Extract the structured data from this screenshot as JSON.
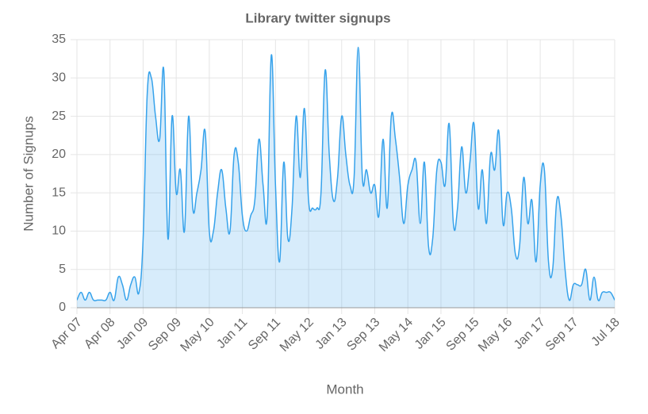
{
  "chart_data": {
    "type": "area",
    "title": "Library twitter signups",
    "x_label": "Month",
    "y_label": "Number of Signups",
    "categories": [
      "Apr 07",
      null,
      null,
      null,
      null,
      null,
      null,
      null,
      "Apr 08",
      null,
      null,
      null,
      null,
      null,
      null,
      null,
      "Jan 09",
      null,
      null,
      null,
      null,
      null,
      null,
      null,
      "Sep 09",
      null,
      null,
      null,
      null,
      null,
      null,
      null,
      "May 10",
      null,
      null,
      null,
      null,
      null,
      null,
      null,
      "Jan 11",
      null,
      null,
      null,
      null,
      null,
      null,
      null,
      "Sep 11",
      null,
      null,
      null,
      null,
      null,
      null,
      null,
      "May 12",
      null,
      null,
      null,
      null,
      null,
      null,
      null,
      "Jan 13",
      null,
      null,
      null,
      null,
      null,
      null,
      null,
      "Sep 13",
      null,
      null,
      null,
      null,
      null,
      null,
      null,
      "May 14",
      null,
      null,
      null,
      null,
      null,
      null,
      null,
      "Jan 15",
      null,
      null,
      null,
      null,
      null,
      null,
      null,
      "Sep 15",
      null,
      null,
      null,
      null,
      null,
      null,
      null,
      "May 16",
      null,
      null,
      null,
      null,
      null,
      null,
      null,
      "Jan 17",
      null,
      null,
      null,
      null,
      null,
      null,
      null,
      "Sep 17",
      null,
      null,
      null,
      null,
      null,
      null,
      null,
      null,
      null,
      "Jul 18"
    ],
    "values": [
      1,
      2,
      1,
      2,
      1,
      1,
      1,
      1,
      2,
      1,
      4,
      3,
      1,
      3,
      4,
      2,
      9,
      28,
      30,
      25,
      22,
      31,
      9,
      25,
      15,
      18,
      10,
      25,
      13,
      15,
      18,
      23,
      10,
      10,
      15,
      18,
      13,
      10,
      20,
      19,
      12,
      10,
      12,
      14,
      22,
      16,
      12,
      33,
      16,
      6,
      19,
      9,
      13,
      25,
      17,
      26,
      14,
      13,
      13,
      15,
      31,
      20,
      14,
      17,
      25,
      20,
      16,
      17,
      34,
      17,
      18,
      15,
      16,
      12,
      22,
      13,
      25,
      22,
      17,
      11,
      16,
      18,
      19,
      11,
      19,
      8,
      9,
      18,
      19,
      16,
      24,
      11,
      13,
      21,
      15,
      19,
      24,
      13,
      18,
      11,
      20,
      18,
      23,
      11,
      15,
      13,
      7,
      8,
      17,
      11,
      14,
      6,
      16,
      18,
      6,
      5,
      14,
      12,
      5,
      1,
      3,
      3,
      3,
      5,
      1,
      4,
      1,
      2,
      2,
      2,
      1
    ],
    "color": "#36a2eb",
    "ylim": [
      0,
      35
    ],
    "yticks": [
      0,
      5,
      10,
      15,
      20,
      25,
      30,
      35
    ],
    "grid": true
  }
}
